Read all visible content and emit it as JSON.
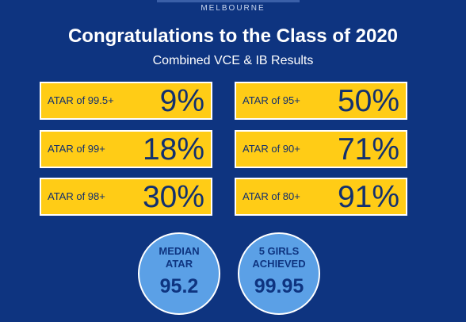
{
  "header": {
    "brand": "MELBOURNE",
    "title": "Congratulations to the Class of 2020",
    "subtitle": "Combined VCE & IB Results"
  },
  "results": [
    {
      "label": "ATAR of 99.5+",
      "value": "9%"
    },
    {
      "label": "ATAR of 95+",
      "value": "50%"
    },
    {
      "label": "ATAR of 99+",
      "value": "18%"
    },
    {
      "label": "ATAR of 90+",
      "value": "71%"
    },
    {
      "label": "ATAR of 98+",
      "value": "30%"
    },
    {
      "label": "ATAR of 80+",
      "value": "91%"
    }
  ],
  "highlights": [
    {
      "line1": "MEDIAN",
      "line2": "ATAR",
      "value": "95.2"
    },
    {
      "line1": "5 GIRLS",
      "line2": "ACHIEVED",
      "value": "99.95"
    }
  ],
  "colors": {
    "background": "#0e3480",
    "card": "#ffcc16",
    "circle": "#5ba0e6",
    "text_dark": "#12306f"
  }
}
